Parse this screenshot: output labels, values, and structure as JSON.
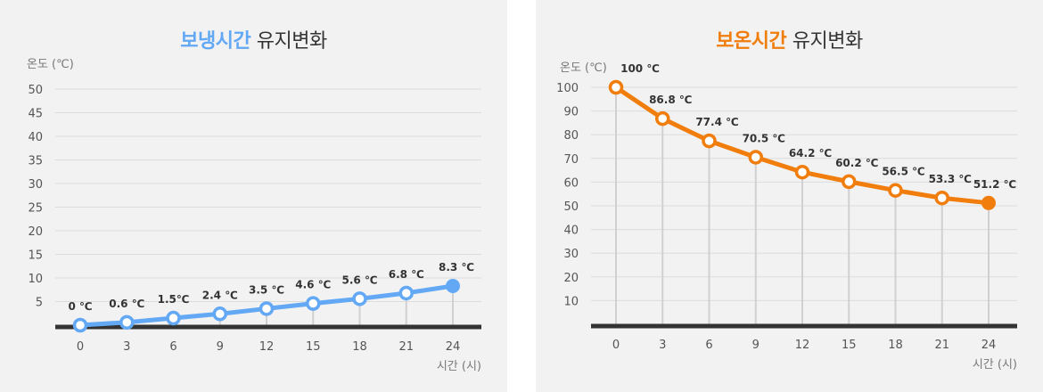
{
  "chart_data": [
    {
      "type": "line",
      "title_highlight": "보냉시간",
      "title_rest": "유지변화",
      "ylabel": "온도 (℃)",
      "xlabel": "시간 (시)",
      "x": [
        0,
        3,
        6,
        9,
        12,
        15,
        18,
        21,
        24
      ],
      "values": [
        0,
        0.6,
        1.5,
        2.4,
        3.5,
        4.6,
        5.6,
        6.8,
        8.3
      ],
      "labels": [
        "0 ℃",
        "0.6 ℃",
        "1.5℃",
        "2.4 ℃",
        "3.5 ℃",
        "4.6 ℃",
        "5.6 ℃",
        "6.8 ℃",
        "8.3 ℃"
      ],
      "yticks": [
        5,
        10,
        15,
        20,
        25,
        30,
        35,
        40,
        45,
        50
      ],
      "ylim": [
        0,
        50
      ],
      "grid": true,
      "color": "#62a8f5"
    },
    {
      "type": "line",
      "title_highlight": "보온시간",
      "title_rest": "유지변화",
      "ylabel": "온도 (℃)",
      "xlabel": "시간 (시)",
      "x": [
        0,
        3,
        6,
        9,
        12,
        15,
        18,
        21,
        24
      ],
      "values": [
        100,
        86.8,
        77.4,
        70.5,
        64.2,
        60.2,
        56.5,
        53.3,
        51.2
      ],
      "labels": [
        "100 ℃",
        "86.8 ℃",
        "77.4 ℃",
        "70.5 ℃",
        "64.2 ℃",
        "60.2 ℃",
        "56.5 ℃",
        "53.3 ℃",
        "51.2 ℃"
      ],
      "yticks": [
        10,
        20,
        30,
        40,
        50,
        60,
        70,
        80,
        90,
        100
      ],
      "ylim": [
        0,
        100
      ],
      "grid": true,
      "color": "#f07d0c"
    }
  ]
}
